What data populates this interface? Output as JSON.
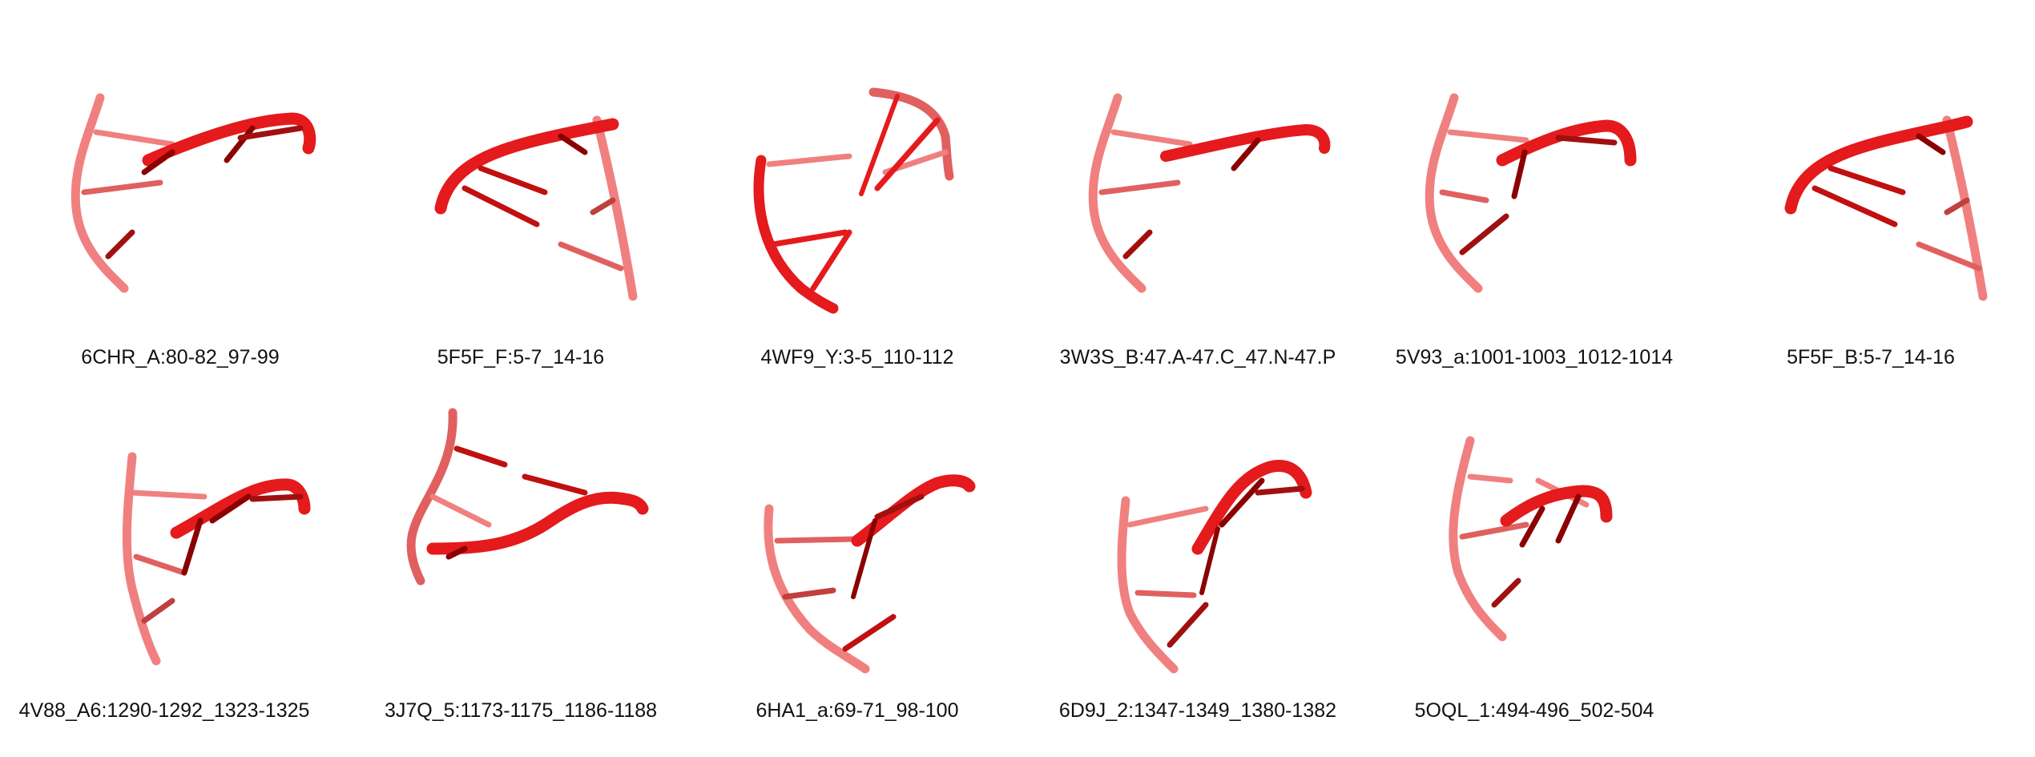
{
  "structures": [
    {
      "id": "6CHR_A:80-82_97-99"
    },
    {
      "id": "5F5F_F:5-7_14-16"
    },
    {
      "id": "4WF9_Y:3-5_110-112"
    },
    {
      "id": "3W3S_B:47.A-47.C_47.N-47.P"
    },
    {
      "id": "5V93_a:1001-1003_1012-1014"
    },
    {
      "id": "5F5F_B:5-7_14-16"
    },
    {
      "id": "4V88_A6:1290-1292_1323-1325"
    },
    {
      "id": "3J7Q_5:1173-1175_1186-1188"
    },
    {
      "id": "6HA1_a:69-71_98-100"
    },
    {
      "id": "6D9J_2:1347-1349_1380-1382"
    },
    {
      "id": "5OQL_1:494-496_502-504"
    }
  ],
  "colors": {
    "front_strand": "#e41a1c",
    "back_strand": "#f08080",
    "dark_base": "#8b0000"
  }
}
